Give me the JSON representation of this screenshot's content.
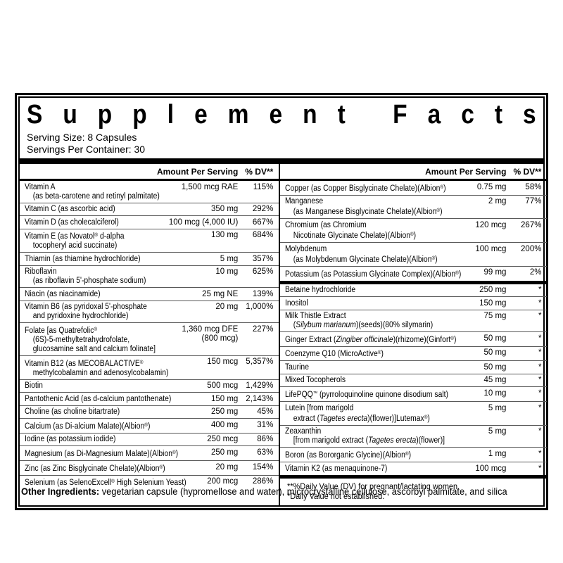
{
  "label": {
    "title": "Supplement Facts",
    "serving_size": "Serving Size: 8 Capsules",
    "servings_per_container": "Servings Per Container: 30",
    "amount_header": "Amount Per Serving",
    "dv_header": "% DV**",
    "footnotes": [
      "**%Daily Value (DV) for pregnant/lactating women.",
      "*Daily Value not established."
    ],
    "other_ingredients_label": "Other Ingredients:",
    "other_ingredients_text": " vegetarian capsule (hypromellose and water), microcrystalline cellulose, ascorbyl palmitate, and silica",
    "colors": {
      "ink": "#000000",
      "separator": "#595959",
      "background": "#ffffff"
    }
  },
  "left_rows": [
    {
      "lines": [
        {
          "ind": false,
          "segs": [
            {
              "t": "Vitamin A"
            }
          ]
        },
        {
          "ind": true,
          "segs": [
            {
              "t": "(as beta-carotene and retinyl palmitate)"
            }
          ]
        }
      ],
      "amount": [
        "1,500 mcg RAE"
      ],
      "dv": "115%"
    },
    {
      "lines": [
        {
          "ind": false,
          "segs": [
            {
              "t": "Vitamin C (as ascorbic acid)"
            }
          ]
        }
      ],
      "amount": [
        "350 mg"
      ],
      "dv": "292%"
    },
    {
      "lines": [
        {
          "ind": false,
          "segs": [
            {
              "t": "Vitamin D (as cholecalciferol)"
            }
          ]
        }
      ],
      "amount": [
        "100 mcg (4,000 IU)"
      ],
      "dv": "667%"
    },
    {
      "lines": [
        {
          "ind": false,
          "segs": [
            {
              "t": "Vitamin E (as Novatol® d-alpha"
            }
          ]
        },
        {
          "ind": true,
          "segs": [
            {
              "t": "tocopheryl acid succinate)"
            }
          ]
        }
      ],
      "amount": [
        "130 mg"
      ],
      "dv": "684%"
    },
    {
      "lines": [
        {
          "ind": false,
          "segs": [
            {
              "t": "Thiamin (as thiamine hydrochloride)"
            }
          ]
        }
      ],
      "amount": [
        "5 mg"
      ],
      "dv": "357%"
    },
    {
      "lines": [
        {
          "ind": false,
          "segs": [
            {
              "t": "Riboflavin"
            }
          ]
        },
        {
          "ind": true,
          "segs": [
            {
              "t": "(as riboflavin 5'-phosphate sodium)"
            }
          ]
        }
      ],
      "amount": [
        "10 mg"
      ],
      "dv": "625%"
    },
    {
      "lines": [
        {
          "ind": false,
          "segs": [
            {
              "t": "Niacin (as niacinamide)"
            }
          ]
        }
      ],
      "amount": [
        "25 mg NE"
      ],
      "dv": "139%"
    },
    {
      "lines": [
        {
          "ind": false,
          "segs": [
            {
              "t": "Vitamin B6 (as pyridoxal 5'-phosphate"
            }
          ]
        },
        {
          "ind": true,
          "segs": [
            {
              "t": "and pyridoxine hydrochloride)"
            }
          ]
        }
      ],
      "amount": [
        "20 mg"
      ],
      "dv": "1,000%"
    },
    {
      "lines": [
        {
          "ind": false,
          "segs": [
            {
              "t": "Folate [as Quatrefolic®"
            }
          ]
        },
        {
          "ind": true,
          "segs": [
            {
              "t": "(6S)-5-methyltetrahydrofolate,"
            }
          ]
        },
        {
          "ind": true,
          "segs": [
            {
              "t": "glucosamine salt and calcium folinate]"
            }
          ]
        }
      ],
      "amount": [
        "1,360 mcg DFE",
        "(800 mcg)"
      ],
      "dv": "227%"
    },
    {
      "lines": [
        {
          "ind": false,
          "segs": [
            {
              "t": "Vitamin B12 (as MECOBALACTIVE®"
            }
          ]
        },
        {
          "ind": true,
          "segs": [
            {
              "t": "methylcobalamin and adenosylcobalamin)"
            }
          ]
        }
      ],
      "amount": [
        "150 mcg"
      ],
      "dv": "5,357%"
    },
    {
      "lines": [
        {
          "ind": false,
          "segs": [
            {
              "t": "Biotin"
            }
          ]
        }
      ],
      "amount": [
        "500 mcg"
      ],
      "dv": "1,429%"
    },
    {
      "lines": [
        {
          "ind": false,
          "segs": [
            {
              "t": "Pantothenic Acid (as d-calcium pantothenate)"
            }
          ]
        }
      ],
      "amount": [
        "150 mg"
      ],
      "dv": "2,143%"
    },
    {
      "lines": [
        {
          "ind": false,
          "segs": [
            {
              "t": "Choline (as choline bitartrate)"
            }
          ]
        }
      ],
      "amount": [
        "250 mg"
      ],
      "dv": "45%"
    },
    {
      "lines": [
        {
          "ind": false,
          "segs": [
            {
              "t": "Calcium (as Di-alcium Malate)(Albion®)"
            }
          ]
        }
      ],
      "amount": [
        "400 mg"
      ],
      "dv": "31%"
    },
    {
      "lines": [
        {
          "ind": false,
          "segs": [
            {
              "t": "Iodine (as potassium iodide)"
            }
          ]
        }
      ],
      "amount": [
        "250 mcg"
      ],
      "dv": "86%"
    },
    {
      "lines": [
        {
          "ind": false,
          "segs": [
            {
              "t": "Magnesium (as Di-Magnesium Malate)(Albion®)"
            }
          ]
        }
      ],
      "amount": [
        "250 mg"
      ],
      "dv": "63%"
    },
    {
      "lines": [
        {
          "ind": false,
          "segs": [
            {
              "t": "Zinc (as Zinc Bisglycinate Chelate)(Albion®)"
            }
          ]
        }
      ],
      "amount": [
        "20 mg"
      ],
      "dv": "154%"
    },
    {
      "lines": [
        {
          "ind": false,
          "segs": [
            {
              "t": "Selenium (as SelenoExcell® High Selenium Yeast)"
            }
          ]
        }
      ],
      "amount": [
        "200 mcg"
      ],
      "dv": "286%"
    }
  ],
  "right_sections": [
    {
      "rows": [
        {
          "lines": [
            {
              "ind": false,
              "segs": [
                {
                  "t": "Copper (as Copper Bisglycinate Chelate)(Albion®)"
                }
              ]
            }
          ],
          "amount": [
            "0.75 mg"
          ],
          "dv": "58%"
        },
        {
          "lines": [
            {
              "ind": false,
              "segs": [
                {
                  "t": "Manganese"
                }
              ]
            },
            {
              "ind": true,
              "segs": [
                {
                  "t": "(as Manganese Bisglycinate Chelate)(Albion®)"
                }
              ]
            }
          ],
          "amount": [
            "2 mg"
          ],
          "dv": "77%"
        },
        {
          "lines": [
            {
              "ind": false,
              "segs": [
                {
                  "t": "Chromium (as Chromium"
                }
              ]
            },
            {
              "ind": true,
              "segs": [
                {
                  "t": "Nicotinate Glycinate Chelate)(Albion®)"
                }
              ]
            }
          ],
          "amount": [
            "120 mcg"
          ],
          "dv": "267%"
        },
        {
          "lines": [
            {
              "ind": false,
              "segs": [
                {
                  "t": "Molybdenum"
                }
              ]
            },
            {
              "ind": true,
              "segs": [
                {
                  "t": "(as Molybdenum Glycinate Chelate)(Albion®)"
                }
              ]
            }
          ],
          "amount": [
            "100 mcg"
          ],
          "dv": "200%"
        },
        {
          "lines": [
            {
              "ind": false,
              "segs": [
                {
                  "t": "Potassium (as Potassium Glycinate Complex)(Albion®)"
                }
              ]
            }
          ],
          "amount": [
            "99 mg"
          ],
          "dv": "2%"
        }
      ]
    },
    {
      "rows": [
        {
          "lines": [
            {
              "ind": false,
              "segs": [
                {
                  "t": "Betaine hydrochloride"
                }
              ]
            }
          ],
          "amount": [
            "250 mg"
          ],
          "dv": "*"
        },
        {
          "lines": [
            {
              "ind": false,
              "segs": [
                {
                  "t": "Inositol"
                }
              ]
            }
          ],
          "amount": [
            "150 mg"
          ],
          "dv": "*"
        },
        {
          "lines": [
            {
              "ind": false,
              "segs": [
                {
                  "t": "Milk Thistle Extract"
                }
              ]
            },
            {
              "ind": true,
              "segs": [
                {
                  "t": "("
                },
                {
                  "t": "Silybum marianum",
                  "i": true
                },
                {
                  "t": ")(seeds)(80% silymarin)"
                }
              ]
            }
          ],
          "amount": [
            "75 mg"
          ],
          "dv": "*"
        },
        {
          "lines": [
            {
              "ind": false,
              "segs": [
                {
                  "t": "Ginger Extract ("
                },
                {
                  "t": "Zingiber officinale",
                  "i": true
                },
                {
                  "t": ")(rhizome)(Ginfort®)"
                }
              ]
            }
          ],
          "amount": [
            "50 mg"
          ],
          "dv": "*"
        },
        {
          "lines": [
            {
              "ind": false,
              "segs": [
                {
                  "t": "Coenzyme Q10 (MicroActive®)"
                }
              ]
            }
          ],
          "amount": [
            "50 mg"
          ],
          "dv": "*"
        },
        {
          "lines": [
            {
              "ind": false,
              "segs": [
                {
                  "t": "Taurine"
                }
              ]
            }
          ],
          "amount": [
            "50 mg"
          ],
          "dv": "*"
        },
        {
          "lines": [
            {
              "ind": false,
              "segs": [
                {
                  "t": "Mixed Tocopherols"
                }
              ]
            }
          ],
          "amount": [
            "45 mg"
          ],
          "dv": "*"
        },
        {
          "lines": [
            {
              "ind": false,
              "segs": [
                {
                  "t": "LifePQQ™ (pyrroloquinoline quinone disodium salt)"
                }
              ]
            }
          ],
          "amount": [
            "10 mg"
          ],
          "dv": "*"
        },
        {
          "lines": [
            {
              "ind": false,
              "segs": [
                {
                  "t": "Lutein [from marigold"
                }
              ]
            },
            {
              "ind": true,
              "segs": [
                {
                  "t": "extract ("
                },
                {
                  "t": "Tagetes erecta",
                  "i": true
                },
                {
                  "t": ")(flower)]Lutemax®)"
                }
              ]
            }
          ],
          "amount": [
            "5 mg"
          ],
          "dv": "*"
        },
        {
          "lines": [
            {
              "ind": false,
              "segs": [
                {
                  "t": "Zeaxanthin"
                }
              ]
            },
            {
              "ind": true,
              "segs": [
                {
                  "t": "[from marigold extract ("
                },
                {
                  "t": "Tagetes erecta",
                  "i": true
                },
                {
                  "t": ")(flower)]"
                }
              ]
            }
          ],
          "amount": [
            "5 mg"
          ],
          "dv": "*"
        },
        {
          "lines": [
            {
              "ind": false,
              "segs": [
                {
                  "t": "Boron (as Bororganic Glycine)(Albion®)"
                }
              ]
            }
          ],
          "amount": [
            "1 mg"
          ],
          "dv": "*"
        },
        {
          "lines": [
            {
              "ind": false,
              "segs": [
                {
                  "t": "Vitamin K2 (as menaquinone-7)"
                }
              ]
            }
          ],
          "amount": [
            "100 mcg"
          ],
          "dv": "*"
        }
      ]
    }
  ]
}
